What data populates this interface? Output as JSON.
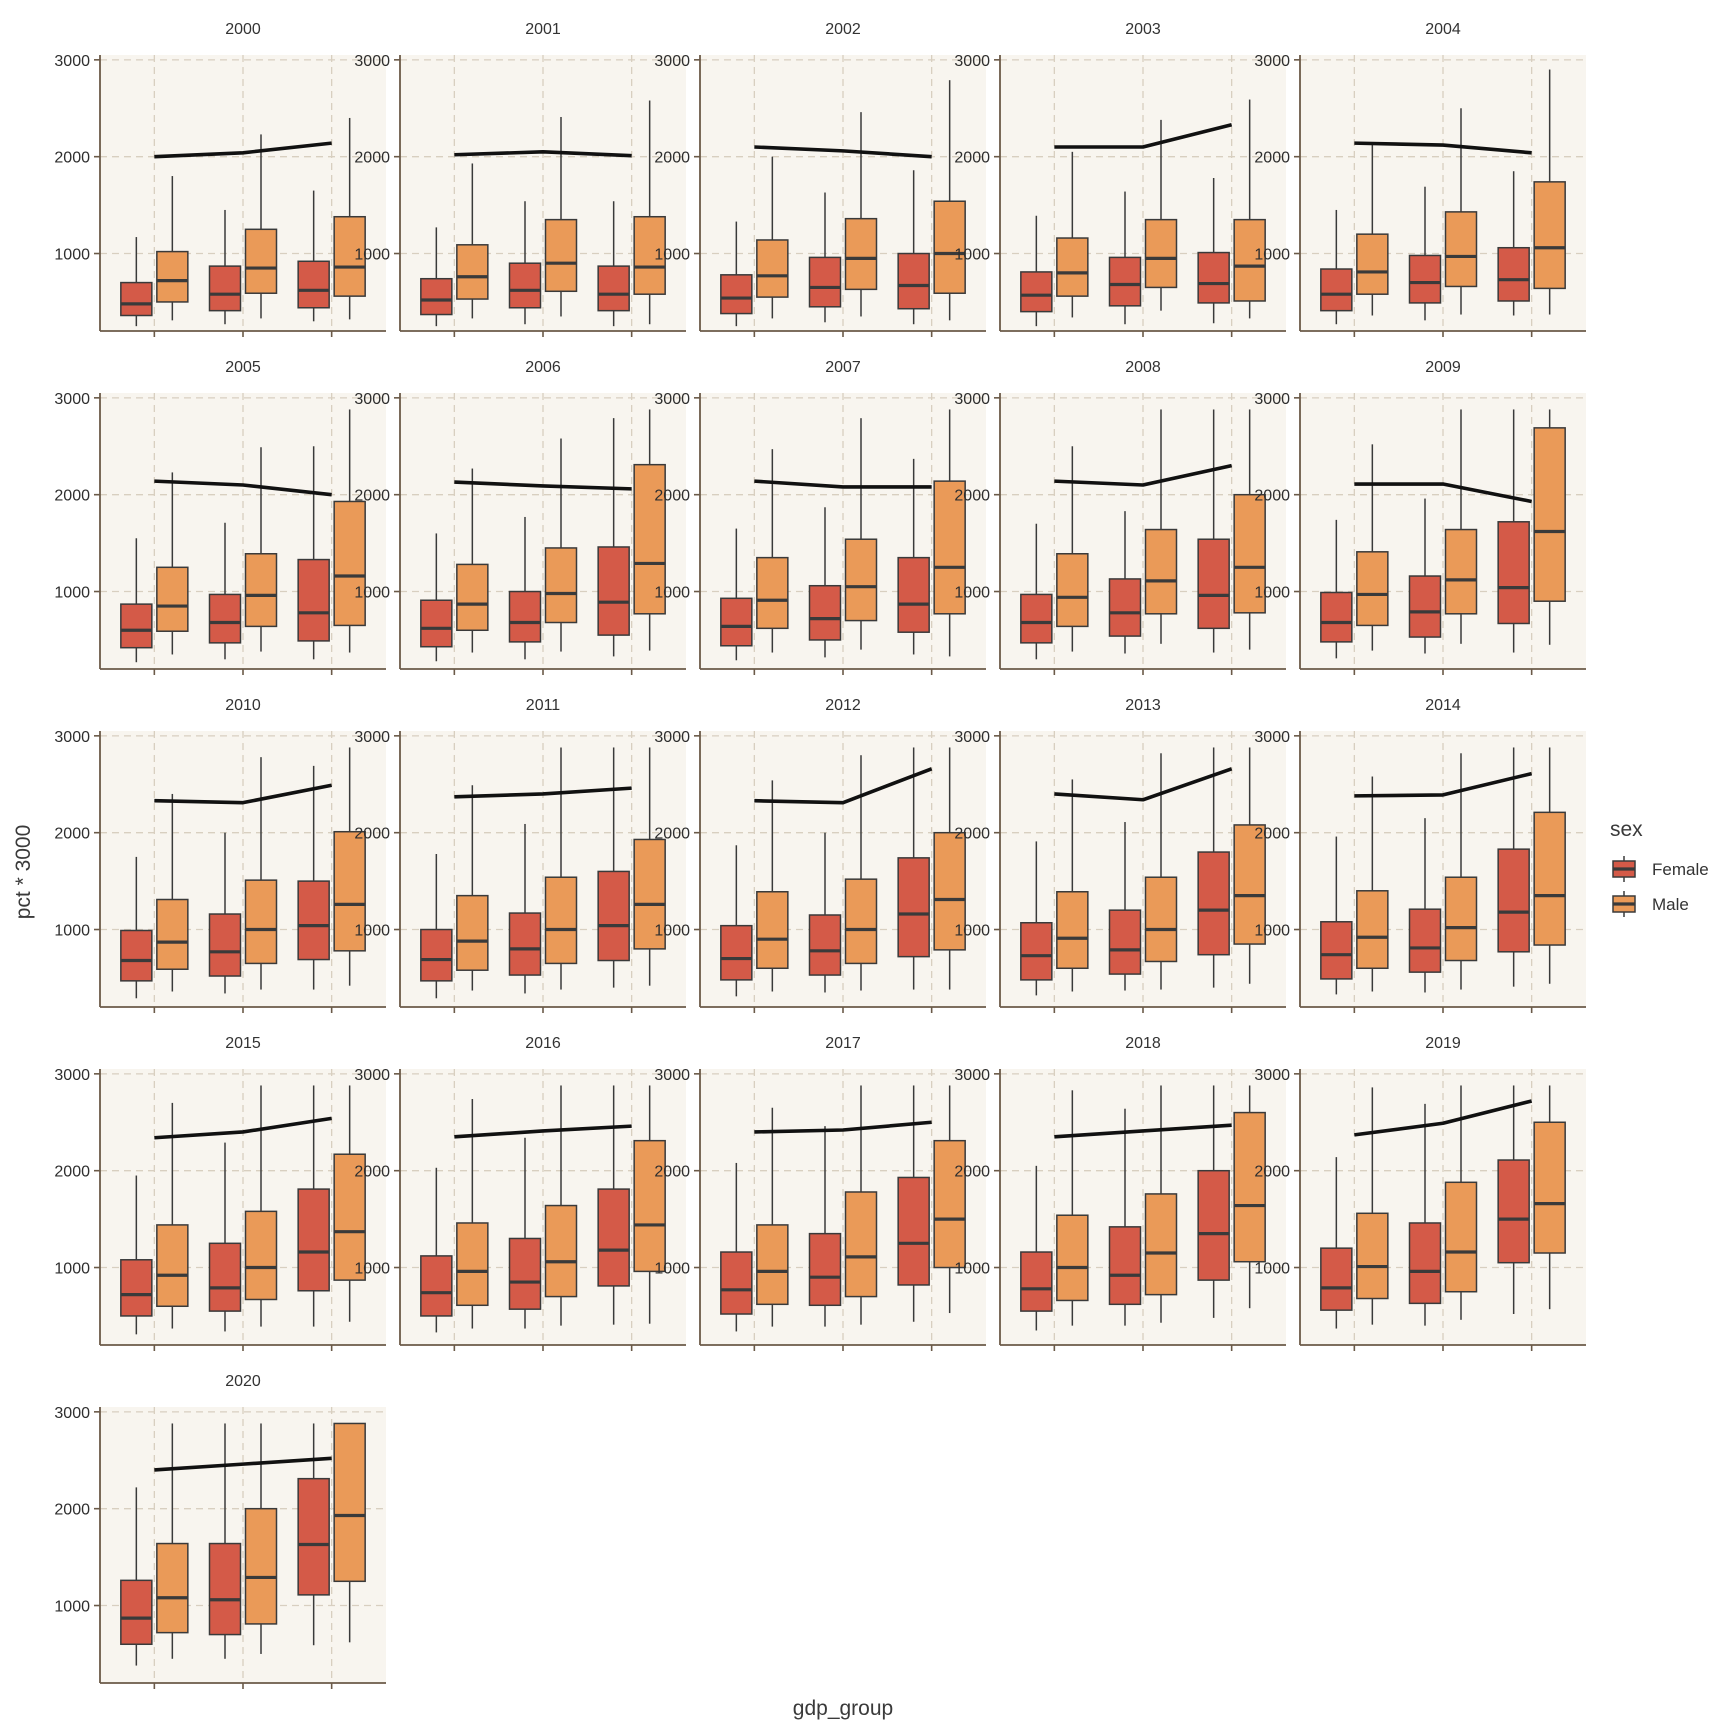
{
  "chart_data": {
    "type": "boxplot",
    "xlabel": "gdp_group",
    "ylabel": "pct * 3000",
    "y_ticks": [
      1000,
      2000,
      3000
    ],
    "ylim": [
      200,
      3050
    ],
    "grid": true,
    "legend": {
      "title": "sex",
      "position": "right",
      "entries": [
        {
          "name": "Female",
          "color": "#d45a48"
        },
        {
          "name": "Male",
          "color": "#ea9a58"
        }
      ]
    },
    "groups": 3,
    "series_names": [
      "Female",
      "Male"
    ],
    "note": "box stats per group per sex: [min, q1, median, q3, max]; mean_line: y values at the three gdp groups",
    "panels": [
      {
        "title": "2000",
        "mean_line": [
          2000,
          2040,
          2140
        ],
        "female": [
          [
            250,
            360,
            480,
            700,
            1170
          ],
          [
            270,
            410,
            580,
            870,
            1450
          ],
          [
            300,
            440,
            620,
            920,
            1650
          ]
        ],
        "male": [
          [
            310,
            500,
            720,
            1020,
            1800
          ],
          [
            330,
            590,
            850,
            1250,
            2230
          ],
          [
            320,
            560,
            860,
            1380,
            2400
          ]
        ]
      },
      {
        "title": "2001",
        "mean_line": [
          2020,
          2050,
          2010
        ],
        "female": [
          [
            250,
            370,
            520,
            740,
            1270
          ],
          [
            270,
            440,
            620,
            900,
            1540
          ],
          [
            250,
            410,
            580,
            870,
            1540
          ]
        ],
        "male": [
          [
            330,
            530,
            760,
            1090,
            1930
          ],
          [
            350,
            610,
            900,
            1350,
            2410
          ],
          [
            270,
            580,
            860,
            1380,
            2580
          ]
        ]
      },
      {
        "title": "2002",
        "mean_line": [
          2100,
          2060,
          2000
        ],
        "female": [
          [
            250,
            380,
            540,
            780,
            1330
          ],
          [
            290,
            450,
            650,
            960,
            1630
          ],
          [
            270,
            430,
            670,
            1000,
            1860
          ]
        ],
        "male": [
          [
            330,
            550,
            770,
            1140,
            2000
          ],
          [
            350,
            630,
            950,
            1360,
            2460
          ],
          [
            310,
            590,
            1000,
            1540,
            2790
          ]
        ]
      },
      {
        "title": "2003",
        "mean_line": [
          2100,
          2100,
          2330
        ],
        "female": [
          [
            250,
            400,
            570,
            810,
            1390
          ],
          [
            270,
            460,
            680,
            960,
            1640
          ],
          [
            280,
            490,
            690,
            1010,
            1780
          ]
        ],
        "male": [
          [
            340,
            560,
            800,
            1160,
            2050
          ],
          [
            410,
            650,
            950,
            1350,
            2380
          ],
          [
            330,
            510,
            870,
            1350,
            2590
          ]
        ]
      },
      {
        "title": "2004",
        "mean_line": [
          2140,
          2120,
          2040
        ],
        "female": [
          [
            270,
            410,
            580,
            840,
            1450
          ],
          [
            310,
            490,
            700,
            980,
            1690
          ],
          [
            360,
            510,
            730,
            1060,
            1850
          ]
        ],
        "male": [
          [
            360,
            580,
            810,
            1200,
            2140
          ],
          [
            370,
            660,
            970,
            1430,
            2500
          ],
          [
            370,
            640,
            1060,
            1740,
            2900
          ]
        ]
      },
      {
        "title": "2005",
        "mean_line": [
          2140,
          2100,
          2000
        ],
        "female": [
          [
            270,
            420,
            600,
            870,
            1550
          ],
          [
            300,
            470,
            680,
            970,
            1710
          ],
          [
            300,
            490,
            780,
            1330,
            2500
          ]
        ],
        "male": [
          [
            350,
            590,
            850,
            1250,
            2230
          ],
          [
            380,
            640,
            960,
            1390,
            2490
          ],
          [
            370,
            650,
            1160,
            1930,
            2880
          ]
        ]
      },
      {
        "title": "2006",
        "mean_line": [
          2130,
          2090,
          2060
        ],
        "female": [
          [
            280,
            430,
            620,
            910,
            1600
          ],
          [
            300,
            480,
            680,
            1000,
            1770
          ],
          [
            330,
            550,
            890,
            1460,
            2790
          ]
        ],
        "male": [
          [
            370,
            600,
            870,
            1280,
            2270
          ],
          [
            380,
            680,
            980,
            1450,
            2580
          ],
          [
            390,
            770,
            1290,
            2310,
            2880
          ]
        ]
      },
      {
        "title": "2007",
        "mean_line": [
          2140,
          2080,
          2080
        ],
        "female": [
          [
            290,
            440,
            640,
            930,
            1650
          ],
          [
            320,
            500,
            720,
            1060,
            1870
          ],
          [
            350,
            580,
            870,
            1350,
            2370
          ]
        ],
        "male": [
          [
            370,
            620,
            910,
            1350,
            2470
          ],
          [
            400,
            700,
            1050,
            1540,
            2790
          ],
          [
            330,
            770,
            1250,
            2140,
            2880
          ]
        ]
      },
      {
        "title": "2008",
        "mean_line": [
          2140,
          2100,
          2300
        ],
        "female": [
          [
            300,
            470,
            680,
            970,
            1700
          ],
          [
            360,
            540,
            780,
            1130,
            1830
          ],
          [
            370,
            620,
            960,
            1540,
            2880
          ]
        ],
        "male": [
          [
            380,
            640,
            940,
            1390,
            2500
          ],
          [
            460,
            770,
            1110,
            1640,
            2880
          ],
          [
            400,
            780,
            1250,
            2000,
            2880
          ]
        ]
      },
      {
        "title": "2009",
        "mean_line": [
          2110,
          2110,
          1930
        ],
        "female": [
          [
            310,
            480,
            680,
            990,
            1740
          ],
          [
            360,
            530,
            790,
            1160,
            1960
          ],
          [
            370,
            670,
            1040,
            1720,
            2880
          ]
        ],
        "male": [
          [
            390,
            650,
            970,
            1410,
            2520
          ],
          [
            460,
            770,
            1120,
            1640,
            2880
          ],
          [
            450,
            900,
            1620,
            2690,
            2880
          ]
        ]
      },
      {
        "title": "2010",
        "mean_line": [
          2330,
          2310,
          2490
        ],
        "female": [
          [
            290,
            470,
            680,
            990,
            1750
          ],
          [
            340,
            520,
            770,
            1160,
            2000
          ],
          [
            380,
            690,
            1040,
            1500,
            2690
          ]
        ],
        "male": [
          [
            360,
            590,
            870,
            1310,
            2400
          ],
          [
            380,
            650,
            1000,
            1510,
            2780
          ],
          [
            420,
            780,
            1260,
            2010,
            2880
          ]
        ]
      },
      {
        "title": "2011",
        "mean_line": [
          2370,
          2400,
          2460
        ],
        "female": [
          [
            290,
            470,
            690,
            1000,
            1780
          ],
          [
            340,
            530,
            800,
            1170,
            2090
          ],
          [
            400,
            680,
            1040,
            1600,
            2880
          ]
        ],
        "male": [
          [
            370,
            580,
            880,
            1350,
            2490
          ],
          [
            380,
            650,
            1000,
            1540,
            2880
          ],
          [
            420,
            800,
            1260,
            1930,
            2880
          ]
        ]
      },
      {
        "title": "2012",
        "mean_line": [
          2330,
          2310,
          2660
        ],
        "female": [
          [
            310,
            480,
            700,
            1040,
            1870
          ],
          [
            350,
            530,
            780,
            1150,
            2000
          ],
          [
            380,
            720,
            1160,
            1740,
            2880
          ]
        ],
        "male": [
          [
            360,
            600,
            900,
            1390,
            2540
          ],
          [
            370,
            650,
            1000,
            1520,
            2800
          ],
          [
            380,
            790,
            1310,
            2000,
            2880
          ]
        ]
      },
      {
        "title": "2013",
        "mean_line": [
          2400,
          2340,
          2660
        ],
        "female": [
          [
            320,
            480,
            730,
            1070,
            1910
          ],
          [
            370,
            540,
            790,
            1200,
            2110
          ],
          [
            400,
            740,
            1200,
            1800,
            2880
          ]
        ],
        "male": [
          [
            360,
            600,
            910,
            1390,
            2550
          ],
          [
            380,
            670,
            1000,
            1540,
            2820
          ],
          [
            440,
            850,
            1350,
            2080,
            2880
          ]
        ]
      },
      {
        "title": "2014",
        "mean_line": [
          2380,
          2390,
          2610
        ],
        "female": [
          [
            330,
            490,
            740,
            1080,
            1960
          ],
          [
            350,
            560,
            810,
            1210,
            2150
          ],
          [
            410,
            770,
            1180,
            1830,
            2880
          ]
        ],
        "male": [
          [
            360,
            600,
            920,
            1400,
            2580
          ],
          [
            380,
            680,
            1020,
            1540,
            2820
          ],
          [
            440,
            840,
            1350,
            2210,
            2880
          ]
        ]
      },
      {
        "title": "2015",
        "mean_line": [
          2340,
          2400,
          2540
        ],
        "female": [
          [
            310,
            500,
            720,
            1080,
            1950
          ],
          [
            340,
            550,
            790,
            1250,
            2290
          ],
          [
            390,
            760,
            1160,
            1810,
            2880
          ]
        ],
        "male": [
          [
            370,
            600,
            920,
            1440,
            2700
          ],
          [
            390,
            670,
            1000,
            1580,
            2880
          ],
          [
            440,
            870,
            1370,
            2170,
            2880
          ]
        ]
      },
      {
        "title": "2016",
        "mean_line": [
          2350,
          2410,
          2460
        ],
        "female": [
          [
            330,
            500,
            740,
            1120,
            2030
          ],
          [
            370,
            570,
            850,
            1300,
            2340
          ],
          [
            410,
            810,
            1180,
            1810,
            2880
          ]
        ],
        "male": [
          [
            370,
            610,
            960,
            1460,
            2740
          ],
          [
            400,
            700,
            1060,
            1640,
            2880
          ],
          [
            420,
            960,
            1440,
            2310,
            2880
          ]
        ]
      },
      {
        "title": "2017",
        "mean_line": [
          2400,
          2420,
          2500
        ],
        "female": [
          [
            340,
            520,
            770,
            1160,
            2080
          ],
          [
            390,
            610,
            900,
            1350,
            2460
          ],
          [
            440,
            820,
            1250,
            1930,
            2880
          ]
        ],
        "male": [
          [
            390,
            620,
            960,
            1440,
            2650
          ],
          [
            410,
            700,
            1110,
            1780,
            2880
          ],
          [
            530,
            1000,
            1500,
            2310,
            2880
          ]
        ]
      },
      {
        "title": "2018",
        "mean_line": [
          2350,
          2410,
          2470
        ],
        "female": [
          [
            350,
            550,
            780,
            1160,
            2050
          ],
          [
            400,
            620,
            920,
            1420,
            2640
          ],
          [
            480,
            870,
            1350,
            2000,
            2880
          ]
        ],
        "male": [
          [
            400,
            660,
            1000,
            1540,
            2830
          ],
          [
            430,
            720,
            1150,
            1760,
            2880
          ],
          [
            580,
            1060,
            1640,
            2600,
            2880
          ]
        ]
      },
      {
        "title": "2019",
        "mean_line": [
          2370,
          2490,
          2720
        ],
        "female": [
          [
            370,
            560,
            790,
            1200,
            2140
          ],
          [
            400,
            630,
            960,
            1460,
            2690
          ],
          [
            520,
            1050,
            1500,
            2110,
            2880
          ]
        ],
        "male": [
          [
            410,
            680,
            1010,
            1560,
            2860
          ],
          [
            460,
            750,
            1160,
            1880,
            2880
          ],
          [
            570,
            1150,
            1660,
            2500,
            2880
          ]
        ]
      },
      {
        "title": "2020",
        "mean_line": [
          2400,
          2460,
          2520
        ],
        "female": [
          [
            380,
            600,
            870,
            1260,
            2220
          ],
          [
            450,
            700,
            1060,
            1640,
            2880
          ],
          [
            590,
            1110,
            1630,
            2310,
            2880
          ]
        ],
        "male": [
          [
            450,
            720,
            1080,
            1640,
            2880
          ],
          [
            500,
            810,
            1290,
            2000,
            2880
          ],
          [
            620,
            1250,
            1930,
            2880,
            2880
          ]
        ]
      }
    ]
  }
}
